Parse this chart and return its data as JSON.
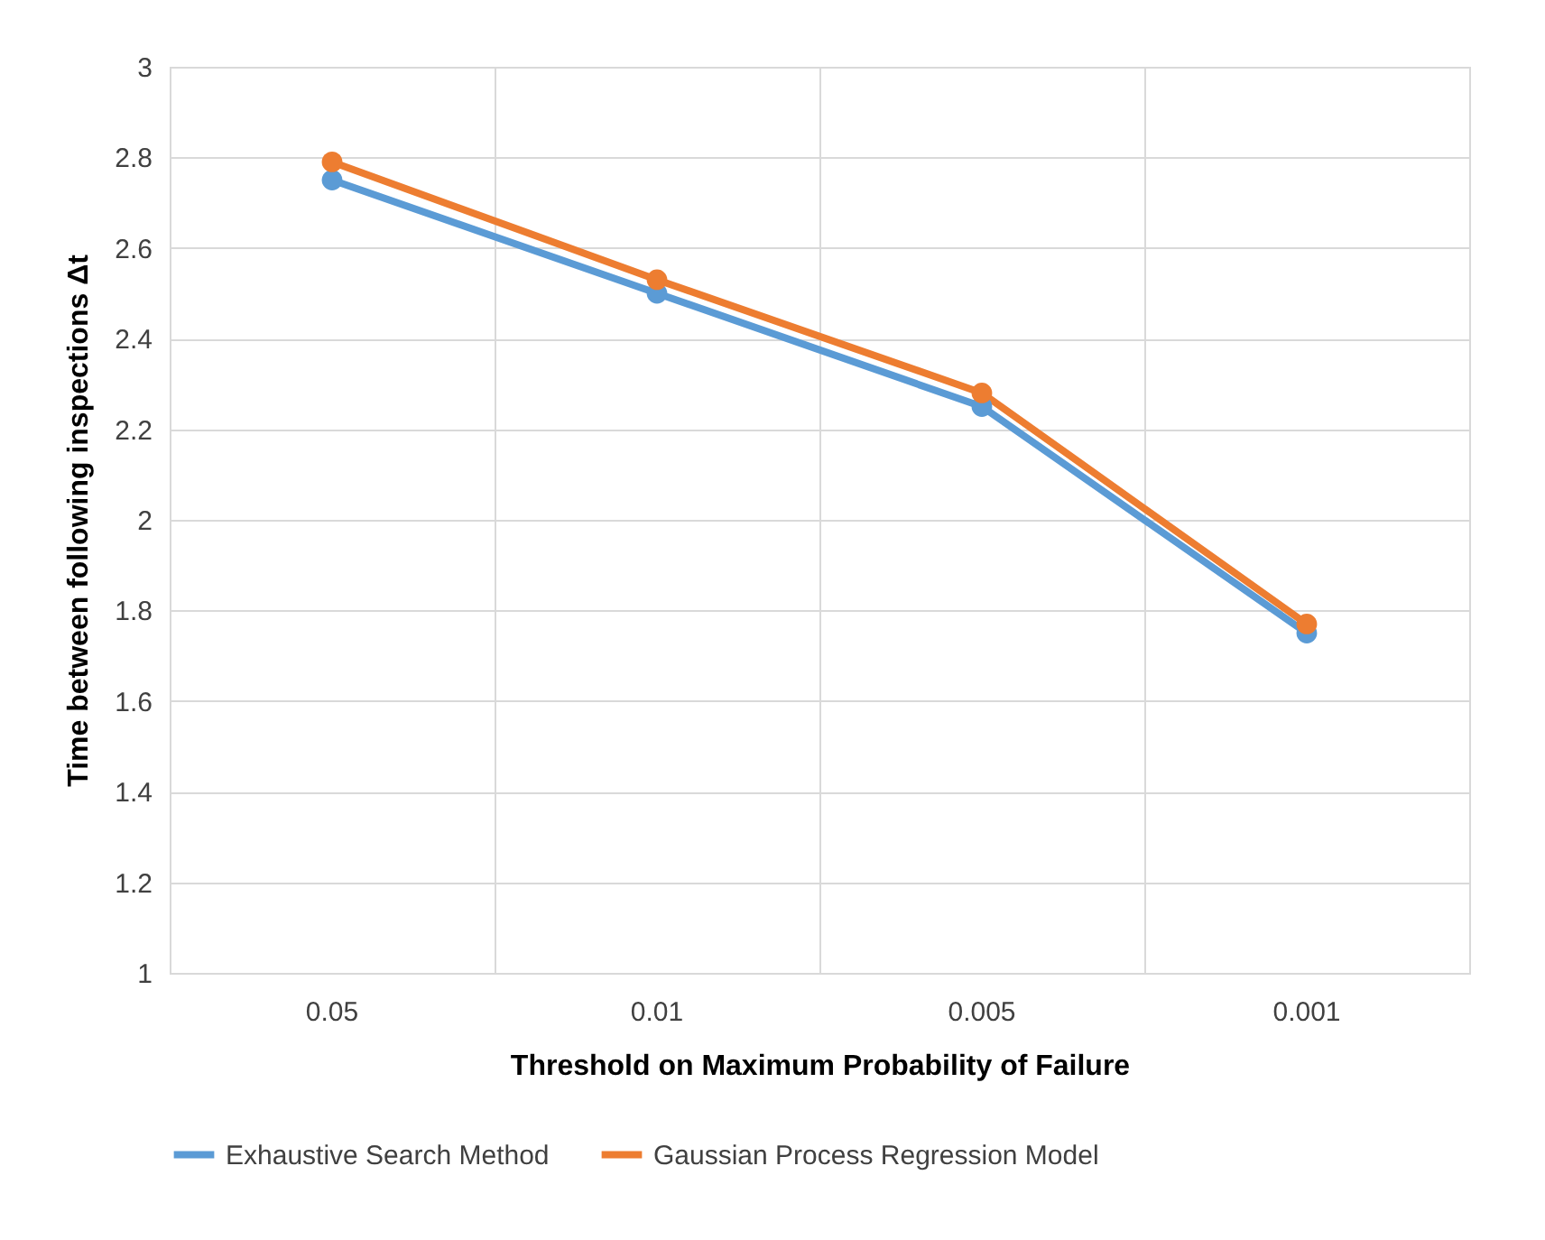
{
  "chart_data": {
    "type": "line",
    "xlabel": "Threshold on Maximum Probability of Failure",
    "ylabel": "Time between following inspections Δt",
    "categories": [
      "0.05",
      "0.01",
      "0.005",
      "0.001"
    ],
    "series": [
      {
        "name": "Exhaustive Search Method",
        "color": "#5b9bd5",
        "values": [
          2.75,
          2.5,
          2.25,
          1.75
        ]
      },
      {
        "name": "Gaussian Process Regression Model",
        "color": "#ed7d31",
        "values": [
          2.79,
          2.53,
          2.28,
          1.77
        ]
      }
    ],
    "ylim": [
      1,
      3
    ],
    "yticks": [
      1,
      1.2,
      1.4,
      1.6,
      1.8,
      2,
      2.2,
      2.4,
      2.6,
      2.8,
      3
    ],
    "grid": true,
    "legend": "bottom",
    "marker": "circle",
    "line_style": "solid"
  }
}
